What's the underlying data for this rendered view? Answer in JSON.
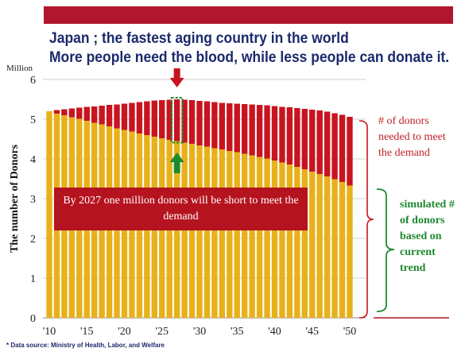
{
  "title_line1": "Japan ; the fastest aging country in the world",
  "title_line2": "More people need the blood, while less people can donate it.",
  "callout": "By 2027 one million donors will be short to meet the demand",
  "side_red": "# of donors needed to meet the demand",
  "side_green": "simulated # of donors based on current trend",
  "source": "* Data source: Ministry of Health, Labor, and Welfare",
  "colors": {
    "supply": "#e8b11a",
    "shortage": "#c8141f",
    "accent_green": "#1e8a2e",
    "title": "#1a2a6c"
  },
  "chart_data": {
    "type": "bar",
    "stacked": true,
    "ylabel": "The number of Donors",
    "yunit": "Million",
    "ylim": [
      0,
      6
    ],
    "yticks": [
      0,
      1,
      2,
      3,
      4,
      5,
      6
    ],
    "xticks": [
      "'10",
      "'15",
      "'20",
      "'25",
      "'30",
      "'35",
      "'40",
      "'45",
      "'50"
    ],
    "x": [
      2010,
      2011,
      2012,
      2013,
      2014,
      2015,
      2016,
      2017,
      2018,
      2019,
      2020,
      2021,
      2022,
      2023,
      2024,
      2025,
      2026,
      2027,
      2028,
      2029,
      2030,
      2031,
      2032,
      2033,
      2034,
      2035,
      2036,
      2037,
      2038,
      2039,
      2040,
      2041,
      2042,
      2043,
      2044,
      2045,
      2046,
      2047,
      2048,
      2049,
      2050
    ],
    "series": [
      {
        "key": "supply",
        "values": [
          5.2,
          5.14,
          5.1,
          5.05,
          5.01,
          4.96,
          4.91,
          4.87,
          4.82,
          4.77,
          4.73,
          4.69,
          4.64,
          4.6,
          4.56,
          4.52,
          4.48,
          4.45,
          4.41,
          4.38,
          4.34,
          4.31,
          4.27,
          4.24,
          4.2,
          4.17,
          4.13,
          4.09,
          4.05,
          4.01,
          3.96,
          3.91,
          3.86,
          3.8,
          3.74,
          3.68,
          3.62,
          3.56,
          3.49,
          3.42,
          3.33
        ]
      },
      {
        "key": "shortage",
        "values": [
          0.0,
          0.09,
          0.15,
          0.22,
          0.28,
          0.35,
          0.41,
          0.47,
          0.54,
          0.6,
          0.66,
          0.72,
          0.79,
          0.85,
          0.91,
          0.96,
          1.01,
          1.05,
          1.08,
          1.1,
          1.12,
          1.14,
          1.16,
          1.17,
          1.2,
          1.22,
          1.25,
          1.28,
          1.31,
          1.34,
          1.37,
          1.4,
          1.44,
          1.48,
          1.52,
          1.56,
          1.6,
          1.63,
          1.66,
          1.69,
          1.73
        ]
      }
    ],
    "highlight_year": 2027,
    "grid": true
  }
}
